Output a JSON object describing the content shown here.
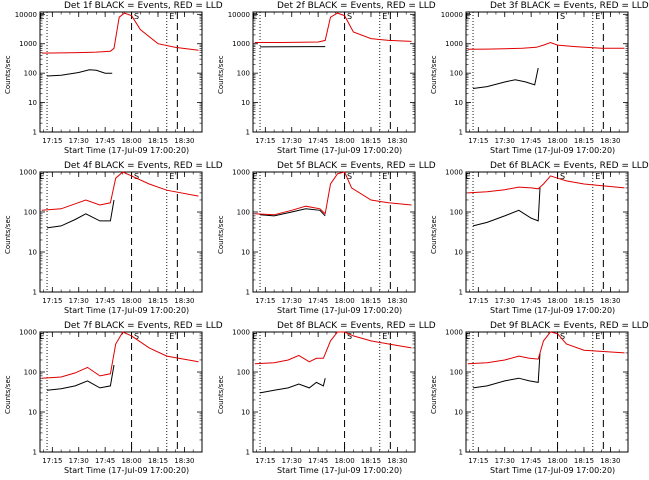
{
  "page": {
    "legend_suffix": "BLACK = Events, RED = LLD",
    "ylabel": "Counts/sec",
    "xlabel": "Start Time (17-Jul-09 17:00:20)",
    "xticks": [
      "17:15",
      "17:30",
      "17:45",
      "18:00",
      "18:15",
      "18:30"
    ],
    "ytick_labels": [
      "1",
      "10",
      "100",
      "1000",
      "10000"
    ],
    "marker_labels": [
      "E",
      "S",
      "E"
    ]
  },
  "colors": {
    "events": "#000000",
    "lld": "#e00000",
    "axes": "#000000",
    "background": "#ffffff"
  },
  "chart_data": [
    {
      "type": "line",
      "title": "Det 1f BLACK = Events, RED = LLD",
      "xlim": [
        "17:08",
        "18:40"
      ],
      "ylim": [
        1,
        12000
      ],
      "yscale": "log",
      "vlines_dotted": [
        "17:12",
        "18:20"
      ],
      "vlines_dashed": [
        "18:00",
        "18:26"
      ],
      "series": [
        {
          "name": "BLACK = Events",
          "x": [
            "17:12",
            "17:20",
            "17:30",
            "17:36",
            "17:40",
            "17:45",
            "17:49"
          ],
          "y": [
            80,
            85,
            105,
            130,
            125,
            100,
            100
          ]
        },
        {
          "name": "RED = LLD",
          "x": [
            "17:09",
            "17:20",
            "17:30",
            "17:40",
            "17:48",
            "17:50",
            "17:53",
            "17:56",
            "18:00",
            "18:05",
            "18:15",
            "18:25",
            "18:38"
          ],
          "y": [
            480,
            490,
            500,
            520,
            560,
            700,
            8000,
            11000,
            9000,
            3000,
            1000,
            750,
            600
          ]
        }
      ]
    },
    {
      "type": "line",
      "title": "Det 2f BLACK = Events, RED = LLD",
      "xlim": [
        "17:08",
        "18:40"
      ],
      "ylim": [
        1,
        12000
      ],
      "yscale": "log",
      "vlines_dotted": [
        "17:12",
        "18:20"
      ],
      "vlines_dashed": [
        "18:00",
        "18:26"
      ],
      "series": [
        {
          "name": "BLACK = Events",
          "x": [
            "17:12",
            "17:25",
            "17:40",
            "17:49"
          ],
          "y": [
            780,
            790,
            800,
            800
          ]
        },
        {
          "name": "RED = LLD",
          "x": [
            "17:09",
            "17:25",
            "17:45",
            "17:49",
            "17:52",
            "17:56",
            "18:00",
            "18:05",
            "18:15",
            "18:25",
            "18:38"
          ],
          "y": [
            1100,
            1100,
            1150,
            1300,
            8000,
            11000,
            9000,
            2500,
            1500,
            1300,
            1200
          ]
        }
      ]
    },
    {
      "type": "line",
      "title": "Det 3f BLACK = Events, RED = LLD",
      "xlim": [
        "17:08",
        "18:40"
      ],
      "ylim": [
        1,
        12000
      ],
      "yscale": "log",
      "vlines_dotted": [
        "17:12",
        "18:20"
      ],
      "vlines_dashed": [
        "18:00",
        "18:26"
      ],
      "series": [
        {
          "name": "BLACK = Events",
          "x": [
            "17:12",
            "17:20",
            "17:30",
            "17:36",
            "17:42",
            "17:47",
            "17:49"
          ],
          "y": [
            30,
            35,
            50,
            60,
            50,
            40,
            150
          ]
        },
        {
          "name": "RED = LLD",
          "x": [
            "17:09",
            "17:20",
            "17:30",
            "17:40",
            "17:48",
            "17:52",
            "17:56",
            "18:00",
            "18:10",
            "18:25",
            "18:38"
          ],
          "y": [
            650,
            660,
            680,
            700,
            760,
            900,
            1100,
            900,
            800,
            700,
            700
          ]
        }
      ]
    },
    {
      "type": "line",
      "title": "Det 4f BLACK = Events, RED = LLD",
      "xlim": [
        "17:08",
        "18:40"
      ],
      "ylim": [
        1,
        1000
      ],
      "yscale": "log",
      "vlines_dotted": [
        "17:12",
        "18:20"
      ],
      "vlines_dashed": [
        "18:00",
        "18:26"
      ],
      "series": [
        {
          "name": "BLACK = Events",
          "x": [
            "17:12",
            "17:20",
            "17:28",
            "17:34",
            "17:42",
            "17:48",
            "17:50"
          ],
          "y": [
            40,
            45,
            65,
            90,
            60,
            60,
            200
          ]
        },
        {
          "name": "RED = LLD",
          "x": [
            "17:09",
            "17:20",
            "17:28",
            "17:34",
            "17:42",
            "17:48",
            "17:51",
            "17:55",
            "18:00",
            "18:10",
            "18:20",
            "18:38"
          ],
          "y": [
            110,
            120,
            160,
            200,
            150,
            170,
            700,
            1000,
            800,
            500,
            350,
            250
          ]
        }
      ]
    },
    {
      "type": "line",
      "title": "Det 5f BLACK = Events, RED = LLD",
      "xlim": [
        "17:08",
        "18:40"
      ],
      "ylim": [
        1,
        1000
      ],
      "yscale": "log",
      "vlines_dotted": [
        "17:12",
        "18:20"
      ],
      "vlines_dashed": [
        "18:00",
        "18:26"
      ],
      "series": [
        {
          "name": "BLACK = Events",
          "x": [
            "17:12",
            "17:20",
            "17:30",
            "17:38",
            "17:46",
            "17:49"
          ],
          "y": [
            85,
            80,
            100,
            120,
            110,
            80
          ]
        },
        {
          "name": "RED = LLD",
          "x": [
            "17:09",
            "17:20",
            "17:30",
            "17:38",
            "17:46",
            "17:49",
            "17:52",
            "17:56",
            "18:00",
            "18:04",
            "18:15",
            "18:25",
            "18:38"
          ],
          "y": [
            90,
            85,
            110,
            140,
            120,
            90,
            500,
            900,
            1000,
            400,
            200,
            170,
            150
          ]
        }
      ]
    },
    {
      "type": "line",
      "title": "Det 6f BLACK = Events, RED = LLD",
      "xlim": [
        "17:08",
        "18:40"
      ],
      "ylim": [
        1,
        1000
      ],
      "yscale": "log",
      "vlines_dotted": [
        "17:12",
        "18:20"
      ],
      "vlines_dashed": [
        "18:00",
        "18:26"
      ],
      "series": [
        {
          "name": "BLACK = Events",
          "x": [
            "17:12",
            "17:20",
            "17:30",
            "17:38",
            "17:45",
            "17:49",
            "17:50"
          ],
          "y": [
            45,
            55,
            80,
            110,
            70,
            60,
            400
          ]
        },
        {
          "name": "RED = LLD",
          "x": [
            "17:09",
            "17:20",
            "17:30",
            "17:38",
            "17:45",
            "17:49",
            "17:52",
            "17:56",
            "18:00",
            "18:05",
            "18:15",
            "18:38"
          ],
          "y": [
            300,
            320,
            360,
            420,
            400,
            380,
            500,
            800,
            700,
            600,
            500,
            400
          ]
        }
      ]
    },
    {
      "type": "line",
      "title": "Det 7f BLACK = Events, RED = LLD",
      "xlim": [
        "17:08",
        "18:40"
      ],
      "ylim": [
        1,
        1000
      ],
      "yscale": "log",
      "vlines_dotted": [
        "17:12",
        "18:20"
      ],
      "vlines_dashed": [
        "18:00",
        "18:26"
      ],
      "series": [
        {
          "name": "BLACK = Events",
          "x": [
            "17:12",
            "17:20",
            "17:28",
            "17:35",
            "17:42",
            "17:48",
            "17:50"
          ],
          "y": [
            35,
            38,
            45,
            60,
            40,
            45,
            150
          ]
        },
        {
          "name": "RED = LLD",
          "x": [
            "17:09",
            "17:20",
            "17:28",
            "17:35",
            "17:42",
            "17:48",
            "17:51",
            "17:55",
            "18:00",
            "18:10",
            "18:20",
            "18:38"
          ],
          "y": [
            70,
            75,
            95,
            130,
            80,
            90,
            500,
            1000,
            800,
            400,
            250,
            180
          ]
        }
      ]
    },
    {
      "type": "line",
      "title": "Det 8f BLACK = Events, RED = LLD",
      "xlim": [
        "17:08",
        "18:40"
      ],
      "ylim": [
        1,
        1000
      ],
      "yscale": "log",
      "vlines_dotted": [
        "17:12",
        "18:20"
      ],
      "vlines_dashed": [
        "18:00",
        "18:26"
      ],
      "series": [
        {
          "name": "BLACK = Events",
          "x": [
            "17:12",
            "17:20",
            "17:28",
            "17:34",
            "17:40",
            "17:44",
            "17:48",
            "17:49"
          ],
          "y": [
            30,
            35,
            40,
            50,
            40,
            55,
            45,
            70
          ]
        },
        {
          "name": "RED = LLD",
          "x": [
            "17:09",
            "17:20",
            "17:28",
            "17:34",
            "17:40",
            "17:44",
            "17:48",
            "17:52",
            "17:56",
            "18:00",
            "18:05",
            "18:15",
            "18:25",
            "18:38"
          ],
          "y": [
            160,
            170,
            200,
            260,
            180,
            220,
            220,
            600,
            1000,
            1000,
            800,
            600,
            500,
            400
          ]
        }
      ]
    },
    {
      "type": "line",
      "title": "Det 9f BLACK = Events, RED = LLD",
      "xlim": [
        "17:08",
        "18:40"
      ],
      "ylim": [
        1,
        1000
      ],
      "yscale": "log",
      "vlines_dotted": [
        "17:12",
        "18:20"
      ],
      "vlines_dashed": [
        "18:00",
        "18:26"
      ],
      "series": [
        {
          "name": "BLACK = Events",
          "x": [
            "17:12",
            "17:20",
            "17:30",
            "17:38",
            "17:44",
            "17:49",
            "17:50"
          ],
          "y": [
            40,
            45,
            60,
            70,
            60,
            55,
            300
          ]
        },
        {
          "name": "RED = LLD",
          "x": [
            "17:09",
            "17:20",
            "17:30",
            "17:38",
            "17:44",
            "17:49",
            "17:52",
            "17:56",
            "18:00",
            "18:05",
            "18:15",
            "18:38"
          ],
          "y": [
            160,
            170,
            200,
            250,
            220,
            210,
            600,
            1000,
            900,
            500,
            350,
            300
          ]
        }
      ]
    }
  ]
}
